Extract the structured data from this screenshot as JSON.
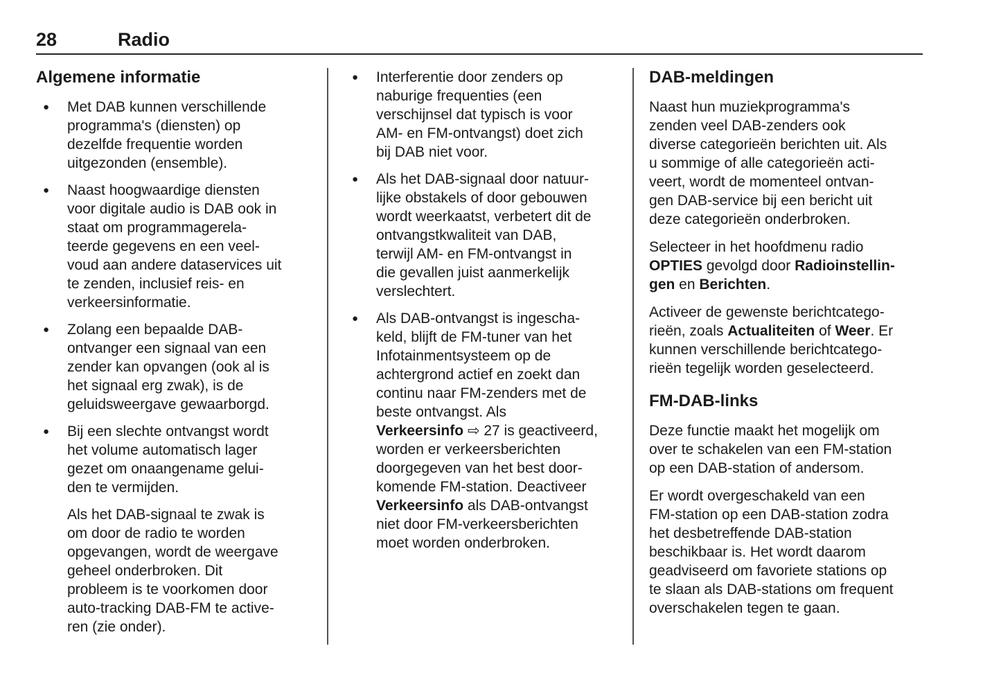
{
  "header": {
    "page_number": "28",
    "chapter_title": "Radio"
  },
  "symbols": {
    "bullet": "●",
    "cross_reference_arrow": "⇨"
  },
  "columns": [
    {
      "blocks": [
        {
          "type": "heading",
          "text": "Algemene informatie"
        },
        {
          "type": "bullet",
          "segments": [
            {
              "t": "Met DAB kunnen verschillende\nprogramma's (diensten) op\ndezelfde frequentie worden\nuitgezonden (ensemble)."
            }
          ]
        },
        {
          "type": "bullet",
          "segments": [
            {
              "t": "Naast hoogwaardige diensten\nvoor digitale audio is DAB ook in\nstaat om programmagerela-\nteerde gegevens en een veel-\nvoud aan andere dataservices uit\nte zenden, inclusief reis- en\nverkeersinformatie."
            }
          ]
        },
        {
          "type": "bullet",
          "segments": [
            {
              "t": "Zolang een bepaalde DAB-\nontvanger een signaal van een\nzender kan opvangen (ook al is\nhet signaal erg zwak), is de\ngeluidsweergave gewaarborgd."
            }
          ]
        },
        {
          "type": "bullet",
          "segments": [
            {
              "t": "Bij een slechte ontvangst wordt\nhet volume automatisch lager\ngezet om onaangename gelui-\nden te vermijden."
            }
          ]
        },
        {
          "type": "para_indent",
          "segments": [
            {
              "t": "Als het DAB-signaal te zwak is\nom door de radio te worden\nopgevangen, wordt de weergave\ngeheel onderbroken. Dit\nprobleem is te voorkomen door\nauto-tracking DAB-FM te active-\nren (zie onder)."
            }
          ]
        }
      ]
    },
    {
      "blocks": [
        {
          "type": "bullet",
          "segments": [
            {
              "t": "Interferentie door zenders op\nnaburige frequenties (een\nverschijnsel dat typisch is voor\nAM- en FM-ontvangst) doet zich\nbij DAB niet voor."
            }
          ]
        },
        {
          "type": "bullet",
          "segments": [
            {
              "t": "Als het DAB-signaal door natuur-\nlijke obstakels of door gebouwen\nwordt weerkaatst, verbetert dit de\nontvangstkwaliteit van DAB,\nterwijl AM- en FM-ontvangst in\ndie gevallen juist aanmerkelijk\nverslechtert."
            }
          ]
        },
        {
          "type": "bullet",
          "segments": [
            {
              "t": "Als DAB-ontvangst is ingescha-\nkeld, blijft de FM-tuner van het\nInfotainmentsysteem op de\nachtergrond actief en zoekt dan\ncontinu naar FM-zenders met de\nbeste ontvangst. Als\n"
            },
            {
              "t": "Verkeersinfo",
              "b": true
            },
            {
              "t": " ⇨ 27 is geactiveerd,\nworden er verkeersberichten\ndoorgegeven van het best door-\nkomende FM-station. Deactiveer\n"
            },
            {
              "t": "Verkeersinfo",
              "b": true
            },
            {
              "t": " als DAB-ontvangst\nniet door FM-verkeersberichten\nmoet worden onderbroken."
            }
          ]
        }
      ]
    },
    {
      "blocks": [
        {
          "type": "heading",
          "text": "DAB-meldingen"
        },
        {
          "type": "para",
          "segments": [
            {
              "t": "Naast hun muziekprogramma's\nzenden veel DAB-zenders ook\ndiverse categorieën berichten uit. Als\nu sommige of alle categorieën acti-\nveert, wordt de momenteel ontvan-\ngen DAB-service bij een bericht uit\ndeze categorieën onderbroken."
            }
          ]
        },
        {
          "type": "para",
          "segments": [
            {
              "t": "Selecteer in het hoofdmenu radio\n"
            },
            {
              "t": "OPTIES",
              "b": true
            },
            {
              "t": " gevolgd door "
            },
            {
              "t": "Radioinstellin-\ngen",
              "b": true
            },
            {
              "t": " en "
            },
            {
              "t": "Berichten",
              "b": true
            },
            {
              "t": "."
            }
          ]
        },
        {
          "type": "para",
          "segments": [
            {
              "t": "Activeer de gewenste berichtcatego-\nrieën, zoals "
            },
            {
              "t": "Actualiteiten",
              "b": true
            },
            {
              "t": " of "
            },
            {
              "t": "Weer",
              "b": true
            },
            {
              "t": ". Er\nkunnen verschillende berichtcatego-\nrieën tegelijk worden geselecteerd."
            }
          ]
        },
        {
          "type": "heading",
          "text": "FM-DAB-links"
        },
        {
          "type": "para",
          "segments": [
            {
              "t": "Deze functie maakt het mogelijk om\nover te schakelen van een FM-station\nop een DAB-station of andersom."
            }
          ]
        },
        {
          "type": "para",
          "segments": [
            {
              "t": "Er wordt overgeschakeld van een\nFM-station op een DAB-station zodra\nhet desbetreffende DAB-station\nbeschikbaar is. Het wordt daarom\ngeadviseerd om favoriete stations op\nte slaan als DAB-stations om frequent\noverschakelen tegen te gaan."
            }
          ]
        }
      ]
    }
  ]
}
